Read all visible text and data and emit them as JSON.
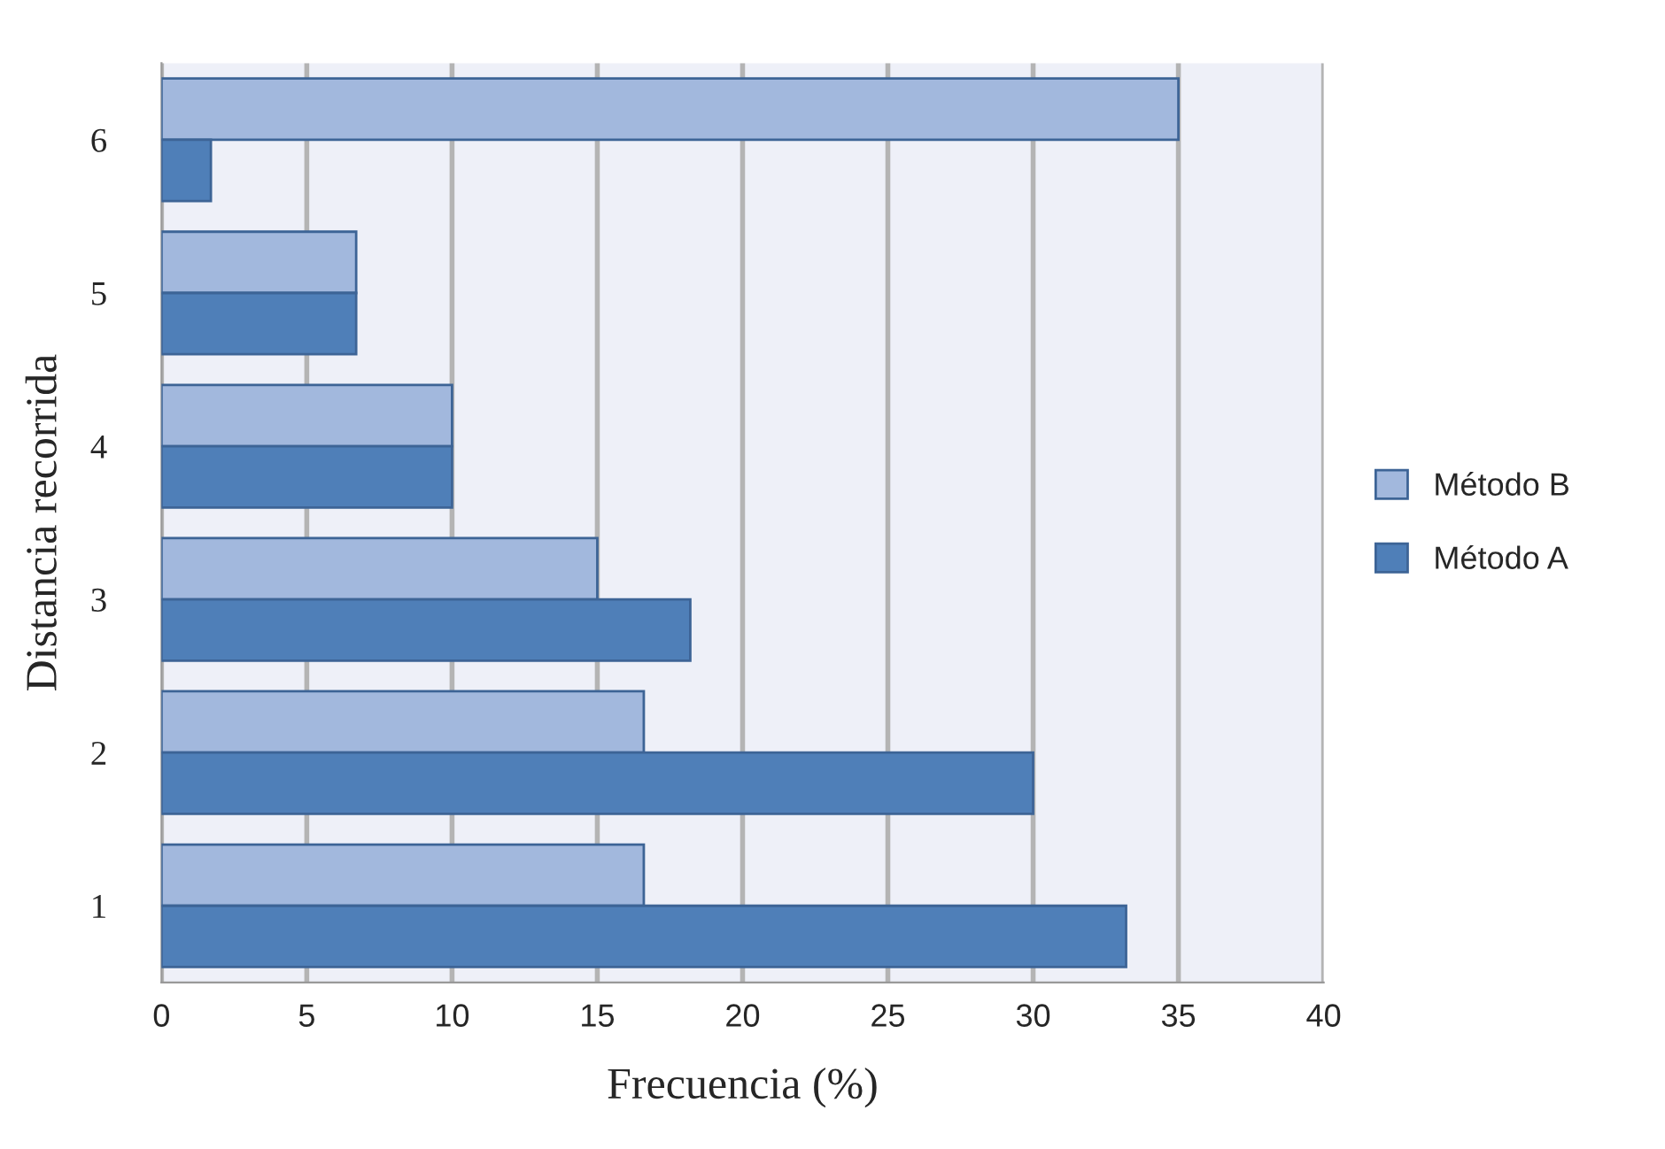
{
  "chart_data": {
    "type": "bar",
    "orientation": "horizontal",
    "xlabel": "Frecuencia (%)",
    "ylabel": "Distancia recorrida",
    "categories": [
      "6",
      "5",
      "4",
      "3",
      "2",
      "1"
    ],
    "series": [
      {
        "name": "Método B",
        "color": "#a2b8dd",
        "values": [
          35,
          6.7,
          10,
          15,
          16.6,
          16.6
        ]
      },
      {
        "name": "Método A",
        "color": "#4f7fb8",
        "values": [
          1.7,
          6.7,
          10,
          18.2,
          30,
          33.2
        ]
      }
    ],
    "xlim": [
      0,
      40
    ],
    "xticks": [
      0,
      5,
      10,
      15,
      20,
      25,
      30,
      35,
      40
    ],
    "grid": "x",
    "legend": "right"
  }
}
